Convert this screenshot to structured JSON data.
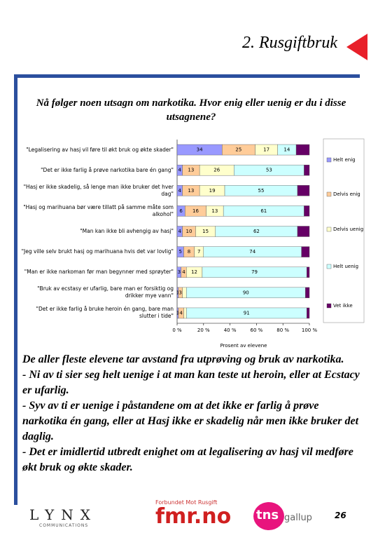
{
  "header": {
    "title": "2. Rusgiftbruk"
  },
  "chart_data": {
    "type": "stacked-bar-horizontal",
    "title": "Nå følger noen utsagn om narkotika. Hvor enig eller uenig er du i disse utsagnene?",
    "x_label": "Prosent av elevene",
    "categories": [
      "\"Legalisering av hasj vil føre til økt bruk og økte skader\"",
      "\"Det er ikke farlig å prøve narkotika bare én gang\"",
      "\"Hasj er ikke skadelig, så lenge man ikke bruker det hver dag\"",
      "\"Hasj og marihuana bør være tillatt på samme måte som alkohol\"",
      "\"Man kan ikke bli avhengig av hasj\"",
      "\"Jeg ville selv brukt hasj og marihuana hvis det var lovlig\"",
      "\"Man er ikke narkoman før man begynner med sprøyter\"",
      "\"Bruk av ecstasy er ufarlig, bare man er forsiktig og drikker mye vann\"",
      "\"Det er ikke farlig å bruke heroin én gang, bare man slutter i tide\""
    ],
    "series": [
      {
        "name": "Helt enig",
        "color": "#9999ff",
        "values": [
          34,
          4,
          4,
          6,
          4,
          5,
          3,
          1,
          1
        ],
        "value_labels": [
          "34",
          "4",
          "4",
          "6",
          "4",
          "5",
          "3",
          "1",
          "1"
        ]
      },
      {
        "name": "Delvis enig",
        "color": "#ffcc99",
        "values": [
          25,
          13,
          13,
          16,
          10,
          8,
          4,
          3,
          4
        ],
        "value_labels": [
          "25",
          "13",
          "13",
          "16",
          "10",
          "8",
          "4",
          "3",
          "4"
        ]
      },
      {
        "name": "Delvis uenig",
        "color": "#ffffcc",
        "values": [
          17,
          26,
          19,
          13,
          15,
          7,
          12,
          3,
          2
        ],
        "value_labels": [
          "17",
          "26",
          "19",
          "13",
          "15",
          "7",
          "12",
          null,
          null
        ]
      },
      {
        "name": "Helt uenig",
        "color": "#ccffff",
        "values": [
          14,
          53,
          55,
          61,
          62,
          74,
          79,
          90,
          91
        ],
        "value_labels": [
          "14",
          "53",
          "55",
          "61",
          "62",
          "74",
          "79",
          "90",
          "91"
        ]
      },
      {
        "name": "Vet ikke",
        "color": "#660066",
        "values": [
          10,
          4,
          9,
          4,
          9,
          6,
          2,
          3,
          2
        ],
        "value_labels": [
          null,
          null,
          null,
          null,
          null,
          null,
          null,
          null,
          null
        ]
      }
    ],
    "xlim": [
      0,
      100
    ],
    "xticks": [
      {
        "value": 0,
        "label": "0 %"
      },
      {
        "value": 20,
        "label": "20 %"
      },
      {
        "value": 40,
        "label": "40 %"
      },
      {
        "value": 60,
        "label": "60 %"
      },
      {
        "value": 80,
        "label": "80 %"
      },
      {
        "value": 100,
        "label": "100 %"
      }
    ],
    "legend": "right"
  },
  "body": [
    "De aller fleste elevene tar avstand fra utprøving og bruk av narkotika.",
    "- Ni av ti sier seg helt uenige i at man kan teste ut heroin, eller at Ecstacy er ufarlig.",
    "- Syv av ti er uenige i påstandene om at det ikke er farlig å prøve narkotika én gang, eller at Hasj ikke er skadelig når men ikke bruker det daglig.",
    "- Det er imidlertid utbredt enighet om at legalisering av hasj vil medføre økt bruk og økte skader."
  ],
  "footer": {
    "logos": [
      "LYNX",
      "COMMUNICATIONS",
      "Forbundet Mot Rusgift",
      "fmr.no",
      "tns",
      "gallup"
    ],
    "page": "26"
  }
}
